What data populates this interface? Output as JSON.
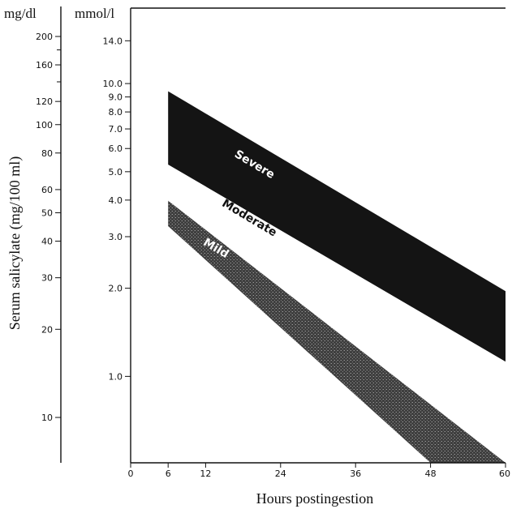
{
  "chart_data": {
    "type": "area",
    "title": "",
    "xlabel": "Hours postingestion",
    "ylabel": "Serum salicylate (mg/100 ml)",
    "xlim": [
      0,
      60
    ],
    "x_ticks": [
      0,
      6,
      12,
      24,
      36,
      48,
      60
    ],
    "y_scale": "log",
    "ylim_mg_dl": [
      7,
      250
    ],
    "left_axis": {
      "unit_label": "mg/dl",
      "ticks": [
        10,
        20,
        30,
        40,
        50,
        60,
        80,
        100,
        120,
        160,
        200
      ],
      "minor_ticks": [
        180,
        140
      ]
    },
    "right_axis": {
      "unit_label": "mmol/l",
      "ticks": [
        1.0,
        2.0,
        3.0,
        4.0,
        5.0,
        6.0,
        7.0,
        8.0,
        9.0,
        10.0,
        14.0
      ],
      "tick_labels": [
        "1.0",
        "2.0",
        "3.0",
        "4.0",
        "5.0",
        "6.0",
        "7.0",
        "8.0",
        "9.0",
        "10.0",
        "14.0"
      ],
      "mmol_per_mg_dl": 0.0724
    },
    "series": [
      {
        "name": "Severe",
        "fill": "#141414",
        "text_color": "#ffffff",
        "upper": [
          [
            6,
            130
          ],
          [
            60,
            27
          ]
        ],
        "lower": [
          [
            6,
            73
          ],
          [
            60,
            15.5
          ]
        ]
      },
      {
        "name": "Moderate",
        "fill": "#ffffff",
        "text_color": "#111111",
        "upper": [
          [
            6,
            73
          ],
          [
            60,
            15.5
          ]
        ],
        "lower": [
          [
            6,
            55
          ],
          [
            60,
            7
          ]
        ]
      },
      {
        "name": "Mild",
        "fill": "#4a4a4a",
        "text_color": "#ffffff",
        "upper": [
          [
            6,
            55
          ],
          [
            60,
            7
          ]
        ],
        "lower": [
          [
            6,
            45
          ],
          [
            48,
            7
          ]
        ]
      }
    ],
    "band_labels": [
      {
        "text": "Severe",
        "x": 16.5,
        "y": 78
      },
      {
        "text": "Moderate",
        "x": 14.5,
        "y": 53
      },
      {
        "text": "Mild",
        "x": 11.5,
        "y": 39
      }
    ],
    "grid": false,
    "legend": "none"
  }
}
